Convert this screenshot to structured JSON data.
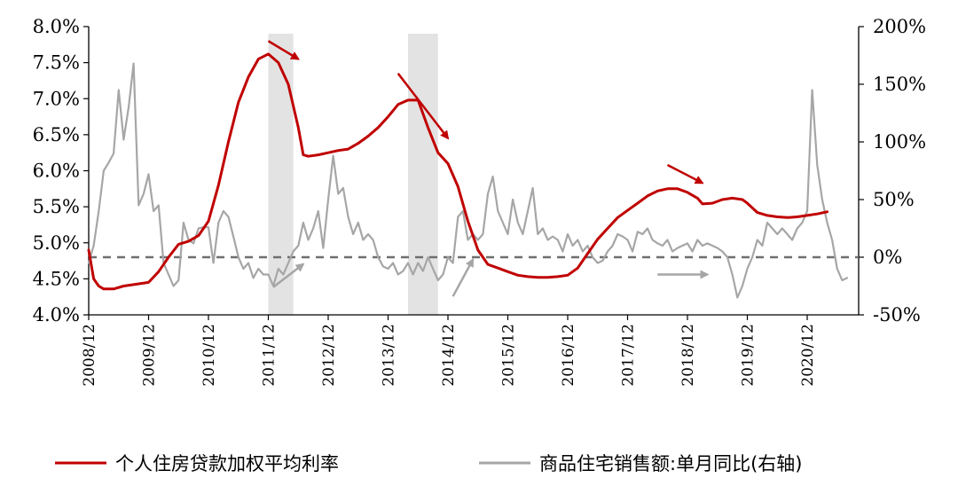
{
  "chart_data": {
    "type": "line",
    "title": "",
    "xlabel": "",
    "ylabel": "",
    "x_ticks": [
      "2008/12",
      "2009/12",
      "2010/12",
      "2011/12",
      "2012/12",
      "2013/12",
      "2014/12",
      "2015/12",
      "2016/12",
      "2017/12",
      "2018/12",
      "2019/12",
      "2020/12"
    ],
    "y_left": {
      "ticks": [
        "4.0%",
        "4.5%",
        "5.0%",
        "5.5%",
        "6.0%",
        "6.5%",
        "7.0%",
        "7.5%",
        "8.0%"
      ],
      "ylim": [
        4.0,
        8.0
      ]
    },
    "y_right": {
      "ticks": [
        "-50%",
        "0%",
        "50%",
        "100%",
        "150%",
        "200%"
      ],
      "ylim": [
        -50,
        200
      ]
    },
    "reference_line": {
      "axis": "right",
      "value": 0,
      "style": "dashed",
      "color": "#6e6e6e"
    },
    "shaded_periods": [
      {
        "start": "2011-12",
        "end": "2012-05"
      },
      {
        "start": "2014-04",
        "end": "2014-10"
      }
    ],
    "series": [
      {
        "name": "个人住房贷款加权平均利率",
        "axis": "left",
        "color": "#c00000",
        "points": [
          [
            "2008-12",
            4.9
          ],
          [
            "2009-01",
            4.5
          ],
          [
            "2009-02",
            4.4
          ],
          [
            "2009-03",
            4.36
          ],
          [
            "2009-05",
            4.36
          ],
          [
            "2009-07",
            4.4
          ],
          [
            "2009-09",
            4.42
          ],
          [
            "2009-12",
            4.45
          ],
          [
            "2010-02",
            4.6
          ],
          [
            "2010-04",
            4.8
          ],
          [
            "2010-06",
            4.98
          ],
          [
            "2010-08",
            5.02
          ],
          [
            "2010-10",
            5.1
          ],
          [
            "2010-12",
            5.3
          ],
          [
            "2011-02",
            5.8
          ],
          [
            "2011-04",
            6.4
          ],
          [
            "2011-06",
            6.95
          ],
          [
            "2011-08",
            7.3
          ],
          [
            "2011-10",
            7.55
          ],
          [
            "2011-12",
            7.62
          ],
          [
            "2012-02",
            7.5
          ],
          [
            "2012-04",
            7.2
          ],
          [
            "2012-06",
            6.6
          ],
          [
            "2012-07",
            6.22
          ],
          [
            "2012-08",
            6.2
          ],
          [
            "2012-10",
            6.22
          ],
          [
            "2012-12",
            6.25
          ],
          [
            "2013-02",
            6.28
          ],
          [
            "2013-04",
            6.3
          ],
          [
            "2013-06",
            6.38
          ],
          [
            "2013-08",
            6.48
          ],
          [
            "2013-10",
            6.6
          ],
          [
            "2013-12",
            6.75
          ],
          [
            "2014-02",
            6.92
          ],
          [
            "2014-04",
            6.98
          ],
          [
            "2014-06",
            6.98
          ],
          [
            "2014-08",
            6.6
          ],
          [
            "2014-10",
            6.25
          ],
          [
            "2014-12",
            6.1
          ],
          [
            "2015-02",
            5.78
          ],
          [
            "2015-04",
            5.3
          ],
          [
            "2015-06",
            4.9
          ],
          [
            "2015-08",
            4.7
          ],
          [
            "2015-10",
            4.65
          ],
          [
            "2015-12",
            4.6
          ],
          [
            "2016-02",
            4.55
          ],
          [
            "2016-04",
            4.53
          ],
          [
            "2016-06",
            4.52
          ],
          [
            "2016-08",
            4.52
          ],
          [
            "2016-10",
            4.53
          ],
          [
            "2016-12",
            4.55
          ],
          [
            "2017-02",
            4.65
          ],
          [
            "2017-04",
            4.85
          ],
          [
            "2017-06",
            5.05
          ],
          [
            "2017-08",
            5.2
          ],
          [
            "2017-10",
            5.35
          ],
          [
            "2017-12",
            5.45
          ],
          [
            "2018-02",
            5.55
          ],
          [
            "2018-04",
            5.65
          ],
          [
            "2018-06",
            5.72
          ],
          [
            "2018-08",
            5.75
          ],
          [
            "2018-10",
            5.75
          ],
          [
            "2018-12",
            5.7
          ],
          [
            "2019-02",
            5.62
          ],
          [
            "2019-03",
            5.54
          ],
          [
            "2019-05",
            5.55
          ],
          [
            "2019-07",
            5.6
          ],
          [
            "2019-09",
            5.62
          ],
          [
            "2019-11",
            5.6
          ],
          [
            "2019-12",
            5.55
          ],
          [
            "2020-02",
            5.42
          ],
          [
            "2020-04",
            5.38
          ],
          [
            "2020-06",
            5.36
          ],
          [
            "2020-08",
            5.35
          ],
          [
            "2020-10",
            5.36
          ],
          [
            "2020-12",
            5.38
          ],
          [
            "2021-02",
            5.4
          ],
          [
            "2021-04",
            5.43
          ]
        ]
      },
      {
        "name": "商品住宅销售额:单月同比(右轴)",
        "axis": "right",
        "color": "#a6a6a6",
        "points": [
          [
            "2008-12",
            -5
          ],
          [
            "2009-01",
            10
          ],
          [
            "2009-02",
            40
          ],
          [
            "2009-03",
            75
          ],
          [
            "2009-04",
            82
          ],
          [
            "2009-05",
            90
          ],
          [
            "2009-06",
            145
          ],
          [
            "2009-07",
            102
          ],
          [
            "2009-08",
            130
          ],
          [
            "2009-09",
            168
          ],
          [
            "2009-10",
            45
          ],
          [
            "2009-11",
            55
          ],
          [
            "2009-12",
            72
          ],
          [
            "2010-01",
            40
          ],
          [
            "2010-02",
            45
          ],
          [
            "2010-03",
            -5
          ],
          [
            "2010-04",
            -15
          ],
          [
            "2010-05",
            -25
          ],
          [
            "2010-06",
            -20
          ],
          [
            "2010-07",
            30
          ],
          [
            "2010-08",
            15
          ],
          [
            "2010-09",
            12
          ],
          [
            "2010-10",
            25
          ],
          [
            "2010-11",
            26
          ],
          [
            "2010-12",
            26
          ],
          [
            "2011-01",
            -5
          ],
          [
            "2011-02",
            30
          ],
          [
            "2011-03",
            40
          ],
          [
            "2011-04",
            35
          ],
          [
            "2011-05",
            18
          ],
          [
            "2011-06",
            0
          ],
          [
            "2011-07",
            -10
          ],
          [
            "2011-08",
            -5
          ],
          [
            "2011-09",
            -18
          ],
          [
            "2011-10",
            -10
          ],
          [
            "2011-11",
            -15
          ],
          [
            "2011-12",
            -15
          ],
          [
            "2012-01",
            -25
          ],
          [
            "2012-02",
            -10
          ],
          [
            "2012-03",
            -15
          ],
          [
            "2012-04",
            -5
          ],
          [
            "2012-05",
            5
          ],
          [
            "2012-06",
            10
          ],
          [
            "2012-07",
            30
          ],
          [
            "2012-08",
            15
          ],
          [
            "2012-09",
            25
          ],
          [
            "2012-10",
            40
          ],
          [
            "2012-11",
            8
          ],
          [
            "2012-12",
            50
          ],
          [
            "2013-01",
            88
          ],
          [
            "2013-02",
            55
          ],
          [
            "2013-03",
            60
          ],
          [
            "2013-04",
            35
          ],
          [
            "2013-05",
            20
          ],
          [
            "2013-06",
            30
          ],
          [
            "2013-07",
            15
          ],
          [
            "2013-08",
            20
          ],
          [
            "2013-09",
            15
          ],
          [
            "2013-10",
            0
          ],
          [
            "2013-11",
            -8
          ],
          [
            "2013-12",
            -10
          ],
          [
            "2014-01",
            -5
          ],
          [
            "2014-02",
            -15
          ],
          [
            "2014-03",
            -12
          ],
          [
            "2014-04",
            -5
          ],
          [
            "2014-05",
            -15
          ],
          [
            "2014-06",
            -5
          ],
          [
            "2014-07",
            -12
          ],
          [
            "2014-08",
            0
          ],
          [
            "2014-09",
            -10
          ],
          [
            "2014-10",
            -20
          ],
          [
            "2014-11",
            -15
          ],
          [
            "2014-12",
            0
          ],
          [
            "2015-01",
            -5
          ],
          [
            "2015-02",
            35
          ],
          [
            "2015-03",
            40
          ],
          [
            "2015-04",
            15
          ],
          [
            "2015-05",
            20
          ],
          [
            "2015-06",
            15
          ],
          [
            "2015-07",
            20
          ],
          [
            "2015-08",
            55
          ],
          [
            "2015-09",
            70
          ],
          [
            "2015-10",
            40
          ],
          [
            "2015-11",
            30
          ],
          [
            "2015-12",
            20
          ],
          [
            "2016-01",
            50
          ],
          [
            "2016-02",
            30
          ],
          [
            "2016-03",
            20
          ],
          [
            "2016-04",
            40
          ],
          [
            "2016-05",
            60
          ],
          [
            "2016-06",
            20
          ],
          [
            "2016-07",
            25
          ],
          [
            "2016-08",
            15
          ],
          [
            "2016-09",
            18
          ],
          [
            "2016-10",
            15
          ],
          [
            "2016-11",
            5
          ],
          [
            "2016-12",
            20
          ],
          [
            "2017-01",
            10
          ],
          [
            "2017-02",
            15
          ],
          [
            "2017-03",
            5
          ],
          [
            "2017-04",
            10
          ],
          [
            "2017-05",
            0
          ],
          [
            "2017-06",
            -5
          ],
          [
            "2017-07",
            -3
          ],
          [
            "2017-08",
            5
          ],
          [
            "2017-09",
            10
          ],
          [
            "2017-10",
            20
          ],
          [
            "2017-11",
            18
          ],
          [
            "2017-12",
            15
          ],
          [
            "2018-01",
            5
          ],
          [
            "2018-02",
            22
          ],
          [
            "2018-03",
            20
          ],
          [
            "2018-04",
            25
          ],
          [
            "2018-05",
            15
          ],
          [
            "2018-06",
            12
          ],
          [
            "2018-07",
            10
          ],
          [
            "2018-08",
            15
          ],
          [
            "2018-09",
            5
          ],
          [
            "2018-10",
            8
          ],
          [
            "2018-11",
            10
          ],
          [
            "2018-12",
            12
          ],
          [
            "2019-01",
            5
          ],
          [
            "2019-02",
            15
          ],
          [
            "2019-03",
            10
          ],
          [
            "2019-04",
            12
          ],
          [
            "2019-05",
            10
          ],
          [
            "2019-06",
            8
          ],
          [
            "2019-07",
            5
          ],
          [
            "2019-08",
            0
          ],
          [
            "2019-09",
            -15
          ],
          [
            "2019-10",
            -35
          ],
          [
            "2019-11",
            -25
          ],
          [
            "2019-12",
            -10
          ],
          [
            "2020-01",
            0
          ],
          [
            "2020-02",
            15
          ],
          [
            "2020-03",
            10
          ],
          [
            "2020-04",
            30
          ],
          [
            "2020-05",
            25
          ],
          [
            "2020-06",
            20
          ],
          [
            "2020-07",
            25
          ],
          [
            "2020-08",
            20
          ],
          [
            "2020-09",
            15
          ],
          [
            "2020-10",
            25
          ],
          [
            "2020-11",
            30
          ],
          [
            "2020-12",
            40
          ],
          [
            "2021-01",
            145
          ],
          [
            "2021-02",
            80
          ],
          [
            "2021-03",
            50
          ],
          [
            "2021-04",
            30
          ],
          [
            "2021-05",
            15
          ],
          [
            "2021-06",
            -10
          ],
          [
            "2021-07",
            -20
          ],
          [
            "2021-08",
            -18
          ]
        ]
      }
    ],
    "trend_arrows": [
      {
        "color": "#c00000",
        "from": [
          "2011-12",
          7.8
        ],
        "to": [
          "2012-06",
          7.55
        ],
        "axis": "left"
      },
      {
        "color": "#c00000",
        "from": [
          "2014-02",
          7.35
        ],
        "to": [
          "2014-12",
          6.45
        ],
        "axis": "left"
      },
      {
        "color": "#c00000",
        "from": [
          "2018-08",
          6.08
        ],
        "to": [
          "2019-03",
          5.83
        ],
        "axis": "left"
      },
      {
        "color": "#a6a6a6",
        "from": [
          "2012-01",
          -26
        ],
        "to": [
          "2012-07",
          -6
        ],
        "axis": "right"
      },
      {
        "color": "#a6a6a6",
        "from": [
          "2015-01",
          -34
        ],
        "to": [
          "2015-05",
          -2
        ],
        "axis": "right"
      },
      {
        "color": "#a6a6a6",
        "from": [
          "2018-06",
          -15
        ],
        "to": [
          "2019-04",
          -15
        ],
        "axis": "right"
      }
    ],
    "legend": {
      "placement": "bottom",
      "entries": [
        {
          "label": "个人住房贷款加权平均利率",
          "color": "#c00000"
        },
        {
          "label": "商品住宅销售额:单月同比(右轴)",
          "color": "#a6a6a6"
        }
      ]
    },
    "grid": false
  }
}
